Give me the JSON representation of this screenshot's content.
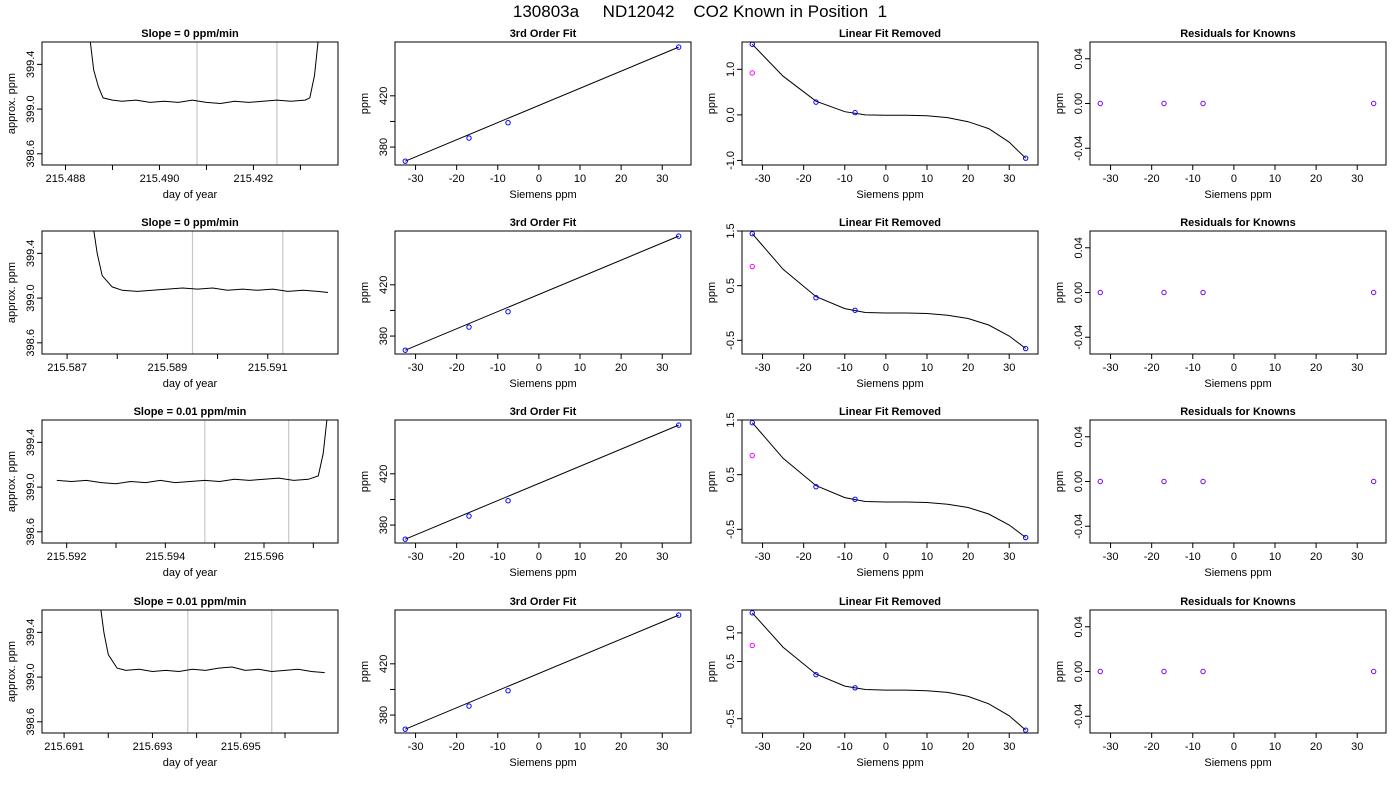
{
  "page": {
    "title": "130803a     ND12042    CO2 Known in Position  1"
  },
  "chart_data": [
    {
      "type": "line",
      "title": "Slope =  0  ppm/min",
      "xlabel": "day of year",
      "ylabel": "approx. ppm",
      "xlim": [
        215.4875,
        215.4938
      ],
      "ylim": [
        398.5,
        399.6
      ],
      "xticks": [
        215.488,
        215.489,
        215.49,
        215.491,
        215.492,
        215.493
      ],
      "xtick_labels": [
        "215.488",
        "",
        "215.490",
        "",
        "215.492",
        ""
      ],
      "yticks": [
        398.6,
        399.0,
        399.4
      ],
      "ytick_labels": [
        "398.6",
        "399.0",
        "399.4"
      ],
      "vlines": [
        215.4908,
        215.4925
      ],
      "series": [
        {
          "x": [
            215.4885,
            215.4886,
            215.4887,
            215.4888,
            215.489,
            215.4892,
            215.4895,
            215.4898,
            215.4901,
            215.4904,
            215.4907,
            215.491,
            215.4913,
            215.4916,
            215.4919,
            215.4922,
            215.4925,
            215.4928,
            215.4931,
            215.4932,
            215.4933,
            215.4934
          ],
          "y": [
            399.7,
            399.35,
            399.2,
            399.1,
            399.08,
            399.07,
            399.08,
            399.06,
            399.07,
            399.06,
            399.08,
            399.06,
            399.05,
            399.07,
            399.06,
            399.07,
            399.08,
            399.07,
            399.08,
            399.1,
            399.3,
            399.7
          ]
        }
      ]
    },
    {
      "type": "scatter",
      "title": "3rd Order Fit",
      "xlabel": "Siemens ppm",
      "ylabel": "ppm",
      "xlim": [
        -35,
        37
      ],
      "ylim": [
        366,
        462
      ],
      "xticks": [
        -30,
        -20,
        -10,
        0,
        10,
        20,
        30
      ],
      "yticks": [
        380,
        400,
        420
      ],
      "ytick_labels": [
        "380",
        "",
        "420"
      ],
      "points": [
        {
          "x": -32.5,
          "y": 369
        },
        {
          "x": -17,
          "y": 387
        },
        {
          "x": -7.5,
          "y": 399
        },
        {
          "x": 34,
          "y": 458
        }
      ],
      "fit": {
        "x": [
          -32.5,
          34
        ],
        "y": [
          369,
          458
        ]
      }
    },
    {
      "type": "scatter",
      "title": "Linear Fit Removed",
      "xlabel": "Siemens ppm",
      "ylabel": "ppm",
      "xlim": [
        -35,
        37
      ],
      "ylim": [
        -1.1,
        1.6
      ],
      "xticks": [
        -30,
        -20,
        -10,
        0,
        10,
        20,
        30
      ],
      "yticks": [
        -1.0,
        0.0,
        1.0
      ],
      "ytick_labels": [
        "-1.0",
        "0.0",
        "1.0"
      ],
      "points": [
        {
          "x": -32.5,
          "y": 1.55
        },
        {
          "x": -17,
          "y": 0.28
        },
        {
          "x": -7.5,
          "y": 0.05
        },
        {
          "x": 34,
          "y": -0.95
        }
      ],
      "reference_point": {
        "x": -32.5,
        "y": 0.92
      },
      "curve": {
        "x": [
          -32.5,
          -25,
          -17,
          -10,
          -5,
          0,
          5,
          10,
          15,
          20,
          25,
          30,
          34
        ],
        "y": [
          1.55,
          0.85,
          0.3,
          0.07,
          0.0,
          -0.01,
          -0.01,
          -0.02,
          -0.06,
          -0.15,
          -0.3,
          -0.6,
          -0.95
        ]
      }
    },
    {
      "type": "scatter",
      "title": "Residuals for Knowns",
      "xlabel": "Siemens ppm",
      "ylabel": "ppm",
      "xlim": [
        -35,
        37
      ],
      "ylim": [
        -0.055,
        0.055
      ],
      "xticks": [
        -30,
        -20,
        -10,
        0,
        10,
        20,
        30
      ],
      "yticks": [
        -0.04,
        0.0,
        0.04
      ],
      "ytick_labels": [
        "-0.04",
        "0.00",
        "0.04"
      ],
      "points": [
        {
          "x": -32.5,
          "y": 0
        },
        {
          "x": -17,
          "y": 0
        },
        {
          "x": -7.5,
          "y": 0
        },
        {
          "x": 34,
          "y": 0
        }
      ]
    },
    {
      "type": "line",
      "title": "Slope =  0  ppm/min",
      "xlabel": "day of year",
      "ylabel": "approx. ppm",
      "xlim": [
        215.5865,
        215.5924
      ],
      "ylim": [
        398.5,
        399.6
      ],
      "xticks": [
        215.587,
        215.588,
        215.589,
        215.59,
        215.591
      ],
      "xtick_labels": [
        "215.587",
        "",
        "215.589",
        "",
        "215.591"
      ],
      "yticks": [
        398.6,
        399.0,
        399.4
      ],
      "ytick_labels": [
        "398.6",
        "399.0",
        "399.4"
      ],
      "vlines": [
        215.5895,
        215.5913
      ],
      "series": [
        {
          "x": [
            215.5875,
            215.5876,
            215.5877,
            215.5879,
            215.5881,
            215.5884,
            215.5887,
            215.589,
            215.5893,
            215.5896,
            215.5899,
            215.5902,
            215.5905,
            215.5908,
            215.5911,
            215.5914,
            215.5917,
            215.592,
            215.5922
          ],
          "y": [
            399.7,
            399.4,
            399.2,
            399.1,
            399.07,
            399.06,
            399.07,
            399.08,
            399.09,
            399.08,
            399.09,
            399.07,
            399.08,
            399.07,
            399.08,
            399.06,
            399.07,
            399.06,
            399.05
          ]
        }
      ]
    },
    {
      "type": "scatter",
      "title": "3rd Order Fit",
      "xlabel": "Siemens ppm",
      "ylabel": "ppm",
      "xlim": [
        -35,
        37
      ],
      "ylim": [
        366,
        462
      ],
      "xticks": [
        -30,
        -20,
        -10,
        0,
        10,
        20,
        30
      ],
      "yticks": [
        380,
        400,
        420
      ],
      "ytick_labels": [
        "380",
        "",
        "420"
      ],
      "points": [
        {
          "x": -32.5,
          "y": 369
        },
        {
          "x": -17,
          "y": 387
        },
        {
          "x": -7.5,
          "y": 399
        },
        {
          "x": 34,
          "y": 458
        }
      ],
      "fit": {
        "x": [
          -32.5,
          34
        ],
        "y": [
          369,
          458
        ]
      }
    },
    {
      "type": "scatter",
      "title": "Linear Fit Removed",
      "xlabel": "Siemens ppm",
      "ylabel": "ppm",
      "xlim": [
        -35,
        37
      ],
      "ylim": [
        -0.75,
        1.5
      ],
      "xticks": [
        -30,
        -20,
        -10,
        0,
        10,
        20,
        30
      ],
      "yticks": [
        -0.5,
        0.5,
        1.5
      ],
      "ytick_labels": [
        "-0.5",
        "0.5",
        "1.5"
      ],
      "points": [
        {
          "x": -32.5,
          "y": 1.45
        },
        {
          "x": -17,
          "y": 0.28
        },
        {
          "x": -7.5,
          "y": 0.05
        },
        {
          "x": 34,
          "y": -0.65
        }
      ],
      "reference_point": {
        "x": -32.5,
        "y": 0.85
      },
      "curve": {
        "x": [
          -32.5,
          -25,
          -17,
          -10,
          -5,
          0,
          5,
          10,
          15,
          20,
          25,
          30,
          34
        ],
        "y": [
          1.45,
          0.8,
          0.3,
          0.08,
          0.01,
          0.0,
          0.0,
          -0.01,
          -0.04,
          -0.1,
          -0.22,
          -0.42,
          -0.65
        ]
      }
    },
    {
      "type": "scatter",
      "title": "Residuals for Knowns",
      "xlabel": "Siemens ppm",
      "ylabel": "ppm",
      "xlim": [
        -35,
        37
      ],
      "ylim": [
        -0.055,
        0.055
      ],
      "xticks": [
        -30,
        -20,
        -10,
        0,
        10,
        20,
        30
      ],
      "yticks": [
        -0.04,
        0.0,
        0.04
      ],
      "ytick_labels": [
        "-0.04",
        "0.00",
        "0.04"
      ],
      "points": [
        {
          "x": -32.5,
          "y": 0
        },
        {
          "x": -17,
          "y": 0
        },
        {
          "x": -7.5,
          "y": 0
        },
        {
          "x": 34,
          "y": 0
        }
      ]
    },
    {
      "type": "line",
      "title": "Slope =  0.01  ppm/min",
      "xlabel": "day of year",
      "ylabel": "approx. ppm",
      "xlim": [
        215.5915,
        215.5975
      ],
      "ylim": [
        398.5,
        399.6
      ],
      "xticks": [
        215.592,
        215.593,
        215.594,
        215.595,
        215.596,
        215.597
      ],
      "xtick_labels": [
        "215.592",
        "",
        "215.594",
        "",
        "215.596",
        ""
      ],
      "yticks": [
        398.6,
        399.0,
        399.4
      ],
      "ytick_labels": [
        "398.6",
        "399.0",
        "399.4"
      ],
      "vlines": [
        215.5948,
        215.5965
      ],
      "series": [
        {
          "x": [
            215.5918,
            215.5921,
            215.5924,
            215.5927,
            215.593,
            215.5933,
            215.5936,
            215.5939,
            215.5942,
            215.5945,
            215.5948,
            215.5951,
            215.5954,
            215.5957,
            215.596,
            215.5963,
            215.5966,
            215.5969,
            215.5971,
            215.5972,
            215.5973
          ],
          "y": [
            399.06,
            399.05,
            399.06,
            399.04,
            399.03,
            399.05,
            399.04,
            399.06,
            399.04,
            399.05,
            399.06,
            399.05,
            399.07,
            399.06,
            399.07,
            399.08,
            399.06,
            399.07,
            399.1,
            399.3,
            399.7
          ]
        }
      ]
    },
    {
      "type": "scatter",
      "title": "3rd Order Fit",
      "xlabel": "Siemens ppm",
      "ylabel": "ppm",
      "xlim": [
        -35,
        37
      ],
      "ylim": [
        366,
        462
      ],
      "xticks": [
        -30,
        -20,
        -10,
        0,
        10,
        20,
        30
      ],
      "yticks": [
        380,
        400,
        420
      ],
      "ytick_labels": [
        "380",
        "",
        "420"
      ],
      "points": [
        {
          "x": -32.5,
          "y": 369
        },
        {
          "x": -17,
          "y": 387
        },
        {
          "x": -7.5,
          "y": 399
        },
        {
          "x": 34,
          "y": 458
        }
      ],
      "fit": {
        "x": [
          -32.5,
          34
        ],
        "y": [
          369,
          458
        ]
      }
    },
    {
      "type": "scatter",
      "title": "Linear Fit Removed",
      "xlabel": "Siemens ppm",
      "ylabel": "ppm",
      "xlim": [
        -35,
        37
      ],
      "ylim": [
        -0.75,
        1.5
      ],
      "xticks": [
        -30,
        -20,
        -10,
        0,
        10,
        20,
        30
      ],
      "yticks": [
        -0.5,
        0.5,
        1.5
      ],
      "ytick_labels": [
        "-0.5",
        "0.5",
        "1.5"
      ],
      "points": [
        {
          "x": -32.5,
          "y": 1.45
        },
        {
          "x": -17,
          "y": 0.28
        },
        {
          "x": -7.5,
          "y": 0.05
        },
        {
          "x": 34,
          "y": -0.65
        }
      ],
      "reference_point": {
        "x": -32.5,
        "y": 0.85
      },
      "curve": {
        "x": [
          -32.5,
          -25,
          -17,
          -10,
          -5,
          0,
          5,
          10,
          15,
          20,
          25,
          30,
          34
        ],
        "y": [
          1.45,
          0.8,
          0.3,
          0.08,
          0.01,
          0.0,
          0.0,
          -0.01,
          -0.04,
          -0.1,
          -0.22,
          -0.42,
          -0.65
        ]
      }
    },
    {
      "type": "scatter",
      "title": "Residuals for Knowns",
      "xlabel": "Siemens ppm",
      "ylabel": "ppm",
      "xlim": [
        -35,
        37
      ],
      "ylim": [
        -0.055,
        0.055
      ],
      "xticks": [
        -30,
        -20,
        -10,
        0,
        10,
        20,
        30
      ],
      "yticks": [
        -0.04,
        0.0,
        0.04
      ],
      "ytick_labels": [
        "-0.04",
        "0.00",
        "0.04"
      ],
      "points": [
        {
          "x": -32.5,
          "y": 0
        },
        {
          "x": -17,
          "y": 0
        },
        {
          "x": -7.5,
          "y": 0
        },
        {
          "x": 34,
          "y": 0
        }
      ]
    },
    {
      "type": "line",
      "title": "Slope =  0.01  ppm/min",
      "xlabel": "day of year",
      "ylabel": "approx. ppm",
      "xlim": [
        215.6905,
        215.6972
      ],
      "ylim": [
        398.5,
        399.6
      ],
      "xticks": [
        215.691,
        215.692,
        215.693,
        215.694,
        215.695,
        215.696
      ],
      "xtick_labels": [
        "215.691",
        "",
        "215.693",
        "",
        "215.695",
        ""
      ],
      "yticks": [
        398.6,
        399.0,
        399.4
      ],
      "ytick_labels": [
        "398.6",
        "399.0",
        "399.4"
      ],
      "vlines": [
        215.6938,
        215.6957
      ],
      "series": [
        {
          "x": [
            215.6918,
            215.6919,
            215.692,
            215.6922,
            215.6924,
            215.6927,
            215.693,
            215.6933,
            215.6936,
            215.6939,
            215.6942,
            215.6945,
            215.6948,
            215.6951,
            215.6954,
            215.6957,
            215.696,
            215.6963,
            215.6966,
            215.6969
          ],
          "y": [
            399.7,
            399.4,
            399.2,
            399.08,
            399.06,
            399.07,
            399.05,
            399.06,
            399.05,
            399.07,
            399.06,
            399.08,
            399.09,
            399.06,
            399.07,
            399.05,
            399.06,
            399.07,
            399.05,
            399.04
          ]
        }
      ]
    },
    {
      "type": "scatter",
      "title": "3rd Order Fit",
      "xlabel": "Siemens ppm",
      "ylabel": "ppm",
      "xlim": [
        -35,
        37
      ],
      "ylim": [
        366,
        462
      ],
      "xticks": [
        -30,
        -20,
        -10,
        0,
        10,
        20,
        30
      ],
      "yticks": [
        380,
        400,
        420
      ],
      "ytick_labels": [
        "380",
        "",
        "420"
      ],
      "points": [
        {
          "x": -32.5,
          "y": 369
        },
        {
          "x": -17,
          "y": 387
        },
        {
          "x": -7.5,
          "y": 399
        },
        {
          "x": 34,
          "y": 458
        }
      ],
      "fit": {
        "x": [
          -32.5,
          34
        ],
        "y": [
          369,
          458
        ]
      }
    },
    {
      "type": "scatter",
      "title": "Linear Fit Removed",
      "xlabel": "Siemens ppm",
      "ylabel": "ppm",
      "xlim": [
        -35,
        37
      ],
      "ylim": [
        -0.75,
        1.4
      ],
      "xticks": [
        -30,
        -20,
        -10,
        0,
        10,
        20,
        30
      ],
      "yticks": [
        -0.5,
        0.5,
        1.0
      ],
      "ytick_labels": [
        "-0.5",
        "0.5",
        "1.0"
      ],
      "points": [
        {
          "x": -32.5,
          "y": 1.35
        },
        {
          "x": -17,
          "y": 0.27
        },
        {
          "x": -7.5,
          "y": 0.04
        },
        {
          "x": 34,
          "y": -0.7
        }
      ],
      "reference_point": {
        "x": -32.5,
        "y": 0.78
      },
      "curve": {
        "x": [
          -32.5,
          -25,
          -17,
          -10,
          -5,
          0,
          5,
          10,
          15,
          20,
          25,
          30,
          34
        ],
        "y": [
          1.35,
          0.75,
          0.28,
          0.07,
          0.01,
          0.0,
          0.0,
          -0.01,
          -0.04,
          -0.11,
          -0.24,
          -0.45,
          -0.7
        ]
      }
    },
    {
      "type": "scatter",
      "title": "Residuals for Knowns",
      "xlabel": "Siemens ppm",
      "ylabel": "ppm",
      "xlim": [
        -35,
        37
      ],
      "ylim": [
        -0.055,
        0.055
      ],
      "xticks": [
        -30,
        -20,
        -10,
        0,
        10,
        20,
        30
      ],
      "yticks": [
        -0.04,
        0.0,
        0.04
      ],
      "ytick_labels": [
        "-0.04",
        "0.00",
        "0.04"
      ],
      "points": [
        {
          "x": -32.5,
          "y": 0
        },
        {
          "x": -17,
          "y": 0
        },
        {
          "x": -7.5,
          "y": 0
        },
        {
          "x": 34,
          "y": 0
        }
      ]
    }
  ],
  "colors": {
    "axis": "#000000",
    "vline": "#c8c8c8",
    "known_point": "#0000ff",
    "reference_point": "#ff00ff",
    "resid_point": "#7700ff",
    "fit_line": "#000000"
  }
}
